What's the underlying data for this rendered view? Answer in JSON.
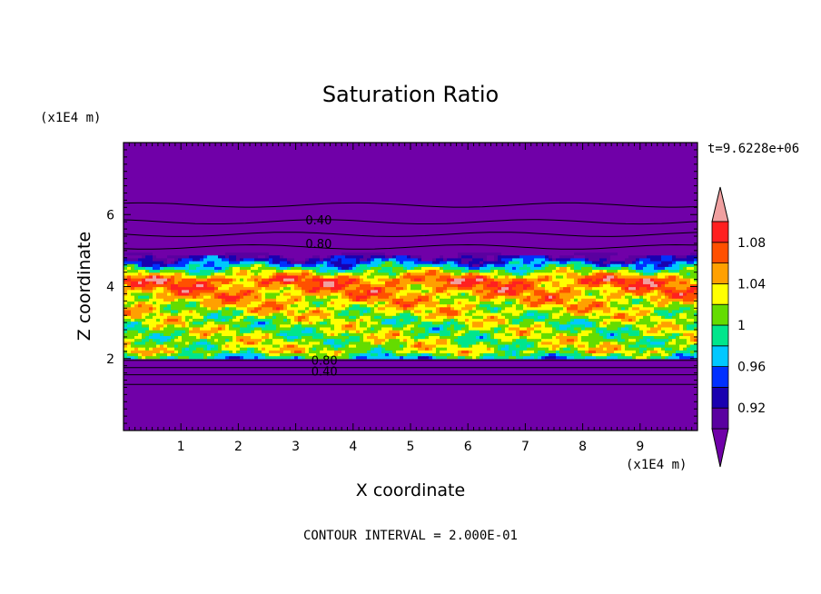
{
  "chart_data": {
    "type": "heatmap",
    "title": "Saturation Ratio",
    "xlabel": "X coordinate",
    "ylabel": "Z coordinate",
    "x_unit": "(x1E4 m)",
    "y_unit": "(x1E4 m)",
    "time_label": "t=9.6228e+06",
    "footer": "CONTOUR INTERVAL = 2.000E-01",
    "xlim": [
      0,
      10
    ],
    "ylim": [
      0,
      8
    ],
    "x_ticks": [
      "1",
      "2",
      "3",
      "4",
      "5",
      "6",
      "7",
      "8",
      "9"
    ],
    "y_ticks": [
      "2",
      "4",
      "6"
    ],
    "contour_labels": [
      {
        "text": "0.40",
        "x": 3.4,
        "z": 5.85
      },
      {
        "text": "0.80",
        "x": 3.4,
        "z": 5.2
      },
      {
        "text": "0.80",
        "x": 3.5,
        "z": 1.95
      },
      {
        "text": "0.40",
        "x": 3.5,
        "z": 1.65
      }
    ],
    "colorbar": {
      "tick_labels": [
        "1.08",
        "1.04",
        "1",
        "0.96",
        "0.92"
      ],
      "levels": [
        0.9,
        0.92,
        0.94,
        0.96,
        0.98,
        1.0,
        1.02,
        1.04,
        1.06,
        1.08,
        1.1
      ],
      "colors": [
        "#5a00a0",
        "#1a00b0",
        "#0030ff",
        "#00c8ff",
        "#00e68c",
        "#64dc00",
        "#ffff00",
        "#ffa000",
        "#ff5000",
        "#ff2020"
      ],
      "under_color": "#7000a8",
      "over_color": "#f0a0a0"
    },
    "z_profile": [
      {
        "z": 0.0,
        "s": 0.0
      },
      {
        "z": 1.8,
        "s": 0.3
      },
      {
        "z": 2.0,
        "s": 0.97
      },
      {
        "z": 2.2,
        "s": 1.02
      },
      {
        "z": 3.0,
        "s": 1.01
      },
      {
        "z": 3.8,
        "s": 1.05
      },
      {
        "z": 4.2,
        "s": 1.07
      },
      {
        "z": 4.6,
        "s": 0.97
      },
      {
        "z": 4.9,
        "s": 0.9
      },
      {
        "z": 5.1,
        "s": 0.8
      },
      {
        "z": 5.8,
        "s": 0.4
      },
      {
        "z": 6.5,
        "s": 0.1
      },
      {
        "z": 8.0,
        "s": 0.0
      }
    ]
  }
}
